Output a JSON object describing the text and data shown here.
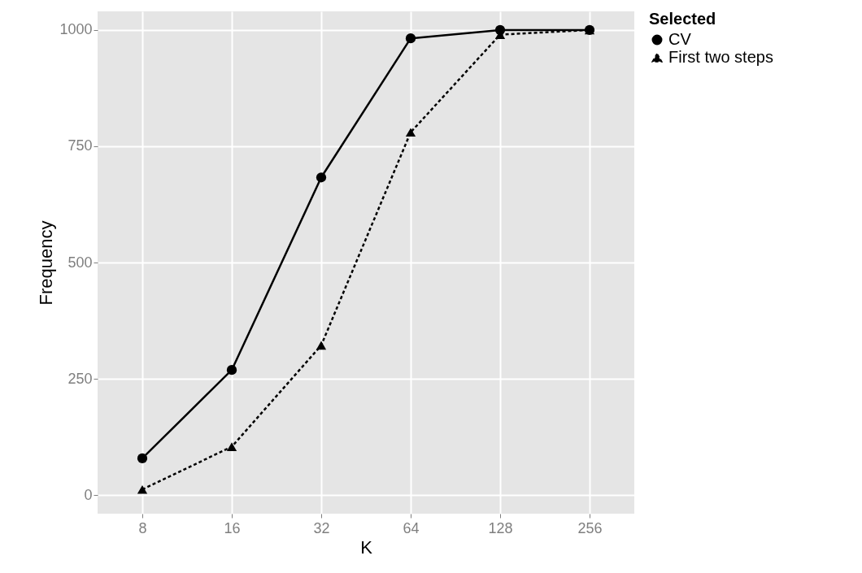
{
  "chart_data": {
    "type": "line",
    "xlabel": "K",
    "ylabel": "Frequency",
    "legend_title": "Selected",
    "categories": [
      "8",
      "16",
      "32",
      "64",
      "128",
      "256"
    ],
    "series": [
      {
        "name": "CV",
        "color": "#000000",
        "marker": "circle",
        "line_style": "solid",
        "values": [
          79,
          269,
          683,
          982,
          1000,
          1000
        ]
      },
      {
        "name": "First two steps",
        "color": "#000000",
        "marker": "triangle",
        "line_style": "dashed",
        "values": [
          12,
          104,
          322,
          780,
          990,
          1000
        ]
      }
    ],
    "ylim": [
      -40,
      1040
    ],
    "yticks": [
      0,
      250,
      500,
      750,
      1000
    ],
    "grid": true,
    "legend": "right"
  }
}
